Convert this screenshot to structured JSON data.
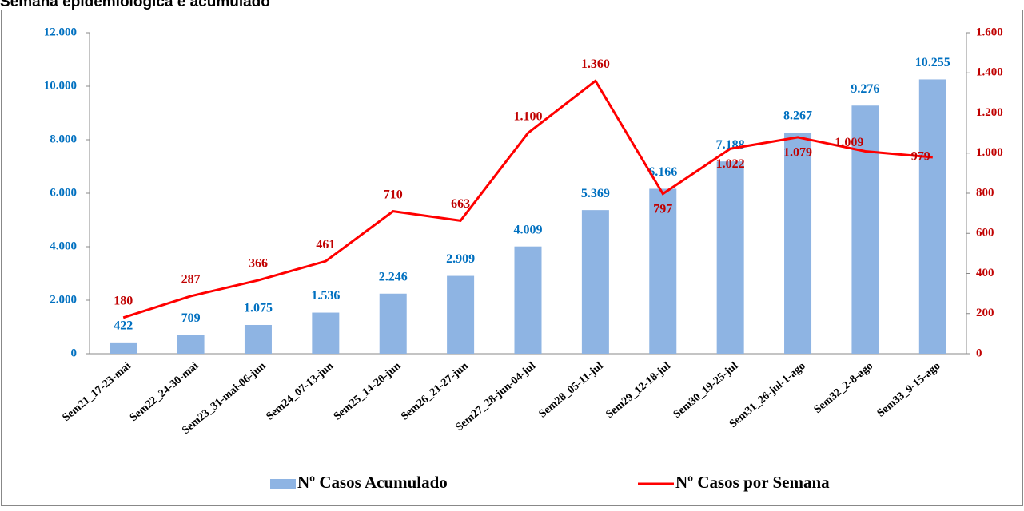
{
  "chart_data": {
    "type": "bar-line",
    "title": "Semana epidemiológica e acumulado",
    "categories": [
      "Sem21_17-23-mai",
      "Sem22_24-30-mai",
      "Sem23_31-mai-06-jun",
      "Sem24_07-13-jun",
      "Sem25_14-20-jun",
      "Sem26_21-27-jun",
      "Sem27_28-jun-04-jul",
      "Sem28_05-11-jul",
      "Sem29_12-18-jul",
      "Sem30_19-25-jul",
      "Sem31_26-jul-1-ago",
      "Sem32_2-8-ago",
      "Sem33_9-15-ago"
    ],
    "series": [
      {
        "name": "Nº Casos Acumulado",
        "type": "bar",
        "color": "#8eb4e3",
        "label_color": "#0070c0",
        "values": [
          422,
          709,
          1075,
          1536,
          2246,
          2909,
          4009,
          5369,
          6166,
          7188,
          8267,
          9276,
          10255
        ],
        "value_labels": [
          "422",
          "709",
          "1.075",
          "1.536",
          "2.246",
          "2.909",
          "4.009",
          "5.369",
          "6.166",
          "7.188",
          "8.267",
          "9.276",
          "10.255"
        ]
      },
      {
        "name": "Nº Casos por Semana",
        "type": "line",
        "axis": "y2",
        "color": "#ff0000",
        "label_color": "#c00000",
        "values": [
          180,
          287,
          366,
          461,
          710,
          663,
          1100,
          1360,
          797,
          1022,
          1079,
          1009,
          979
        ],
        "value_labels": [
          "180",
          "287",
          "366",
          "461",
          "710",
          "663",
          "1.100",
          "1.360",
          "797",
          "1.022",
          "1.079",
          "1.009",
          "979"
        ]
      }
    ],
    "ylim": [
      0,
      12000
    ],
    "yticks": [
      0,
      {
        "value": 2000,
        "label": "2.000"
      },
      {
        "value": 4000,
        "label": "4.000"
      },
      {
        "value": 6000,
        "label": "6.000"
      },
      {
        "value": 8000,
        "label": "8.000"
      },
      {
        "value": 10000,
        "label": "10.000"
      },
      {
        "value": 12000,
        "label": "12.000"
      }
    ],
    "y2lim": [
      0,
      1600
    ],
    "y2ticks": [
      0,
      200,
      400,
      600,
      800,
      {
        "value": 1000,
        "label": "1.000"
      },
      {
        "value": 1200,
        "label": "1.200"
      },
      {
        "value": 1400,
        "label": "1.400"
      },
      {
        "value": 1600,
        "label": "1.600"
      }
    ],
    "legend": "bottom"
  }
}
